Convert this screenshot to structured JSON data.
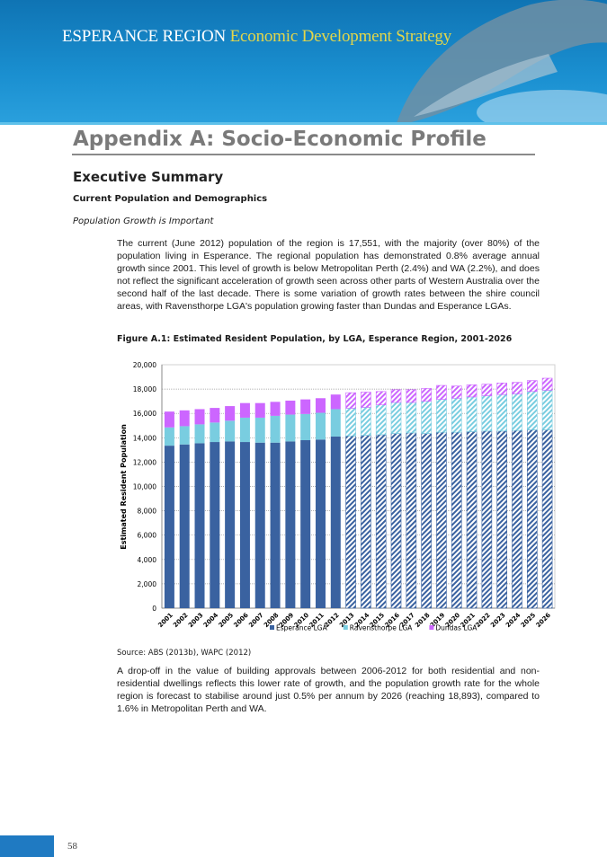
{
  "header": {
    "brand": "ESPERANCE REGION",
    "subtitle": "Economic Development Strategy"
  },
  "page_title": "Appendix A: Socio-Economic Profile",
  "section_title": "Executive Summary",
  "subsection_title": "Current Population and Demographics",
  "sub_subsection_title": "Population Growth is Important",
  "paragraph1": "The current (June 2012) population of the region is 17,551, with the majority (over 80%) of the population living in Esperance.  The regional population has demonstrated 0.8% average annual growth since 2001.  This level of growth is below Metropolitan Perth (2.4%) and WA (2.2%), and does not reflect the significant acceleration of growth seen across other parts of Western Australia over the second half of the last decade. There is some variation of growth rates between the shire council areas, with Ravensthorpe LGA's population growing faster than Dundas and Esperance LGAs.",
  "figure_caption": "Figure A.1: Estimated Resident Population, by LGA, Esperance Region, 2001-2026",
  "source": "Source: ABS (2013b), WAPC (2012)",
  "paragraph2": "A drop-off in the value of building approvals between 2006-2012 for both residential and non-residential dwellings reflects this lower rate of growth, and the population growth rate for the whole region is forecast to stabilise around just 0.5% per annum by 2026 (reaching 18,893), compared to 1.6% in Metropolitan Perth and WA.",
  "page_number": "58",
  "chart_data": {
    "type": "bar",
    "stacked": true,
    "ylabel": "Estimated Resident Population",
    "ylim": [
      0,
      20000
    ],
    "yticks": [
      "0",
      "2,000",
      "4,000",
      "6,000",
      "8,000",
      "10,000",
      "12,000",
      "14,000",
      "16,000",
      "18,000",
      "20,000"
    ],
    "grid": true,
    "legend": "bottom",
    "projected_from": "2013",
    "categories": [
      "2001",
      "2002",
      "2003",
      "2004",
      "2005",
      "2006",
      "2007",
      "2008",
      "2009",
      "2010",
      "2011",
      "2012",
      "2013",
      "2014",
      "2015",
      "2016",
      "2017",
      "2018",
      "2019",
      "2020",
      "2021",
      "2022",
      "2023",
      "2024",
      "2025",
      "2026"
    ],
    "series": [
      {
        "name": "Esperance LGA",
        "color": "#3a62a0",
        "values": [
          13350,
          13450,
          13550,
          13650,
          13700,
          13650,
          13600,
          13600,
          13700,
          13800,
          13850,
          14100,
          14150,
          14200,
          14250,
          14350,
          14400,
          14350,
          14450,
          14450,
          14500,
          14550,
          14550,
          14600,
          14650,
          14650
        ]
      },
      {
        "name": "Ravensthorpe LGA",
        "color": "#79cde0",
        "values": [
          1500,
          1500,
          1550,
          1600,
          1700,
          2000,
          2050,
          2200,
          2200,
          2150,
          2200,
          2250,
          2275,
          2300,
          2450,
          2550,
          2500,
          2650,
          2700,
          2800,
          2850,
          2900,
          3000,
          3000,
          3150,
          3250
        ]
      },
      {
        "name": "Dundas LGA",
        "color": "#cc66ff",
        "values": [
          1300,
          1300,
          1250,
          1200,
          1200,
          1200,
          1200,
          1150,
          1150,
          1200,
          1200,
          1201,
          1275,
          1250,
          1100,
          1050,
          1050,
          1050,
          1150,
          1000,
          1000,
          950,
          950,
          950,
          900,
          993
        ]
      }
    ]
  }
}
